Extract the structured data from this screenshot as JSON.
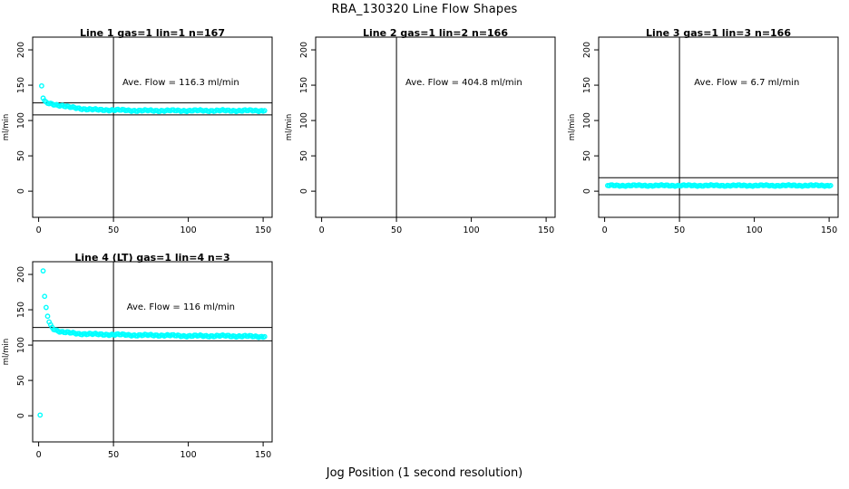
{
  "figure": {
    "title": "RBA_130320  Line Flow Shapes",
    "caption": "Jog Position (1 second resolution)",
    "background_color": "#ffffff",
    "point_color": "#00ffff",
    "axis_color": "#000000"
  },
  "chart_data": {
    "type": "scatter",
    "title": "RBA_130320  Line Flow Shapes",
    "xlabel": "Jog Position (1 second resolution)",
    "ylabel": "ml/min",
    "x_ticks": [
      0,
      50,
      100,
      150
    ],
    "y_ticks": [
      0,
      50,
      100,
      150,
      200
    ],
    "xlim": [
      -4,
      156
    ],
    "ylim": [
      -37,
      218
    ],
    "grid": false,
    "vline_x": 50,
    "point_color": "#00ffff",
    "annotation_anchor": {
      "x": 95,
      "y": 150
    },
    "panels": [
      {
        "title": "Line 1 gas=1 lin=1 n=167",
        "annotation": "Ave. Flow =  116.3  ml/min",
        "ave_flow": 116.3,
        "n": 167,
        "ref_lines": [
          125,
          108
        ],
        "profile": [
          [
            2,
            149
          ],
          [
            3,
            132
          ],
          [
            4,
            127
          ],
          [
            5,
            125
          ],
          [
            7,
            124
          ],
          [
            10,
            123
          ],
          [
            13,
            122
          ],
          [
            16,
            121
          ],
          [
            20,
            119
          ],
          [
            24,
            118
          ],
          [
            28,
            117
          ],
          [
            33,
            116
          ],
          [
            40,
            115
          ],
          [
            50,
            115
          ],
          [
            65,
            114
          ],
          [
            80,
            114
          ],
          [
            100,
            114
          ],
          [
            125,
            114
          ],
          [
            151,
            114
          ]
        ],
        "extra_points": [],
        "band_jitter": 1.4
      },
      {
        "title": "Line 2 gas=1 lin=2 n=166",
        "annotation": "Ave. Flow =  404.8  ml/min",
        "ave_flow": 404.8,
        "n": 166,
        "ref_lines": [],
        "profile": [],
        "extra_points": [],
        "band_jitter": 0
      },
      {
        "title": "Line 3 gas=1 lin=3 n=166",
        "annotation": "Ave. Flow =  6.7  ml/min",
        "ave_flow": 6.7,
        "n": 166,
        "ref_lines": [
          19,
          -5
        ],
        "profile": [
          [
            2,
            8
          ],
          [
            30,
            8
          ],
          [
            70,
            8
          ],
          [
            110,
            8
          ],
          [
            151,
            8
          ]
        ],
        "extra_points": [],
        "band_jitter": 1.1
      },
      {
        "title": "Line 4 (LT) gas=1 lin=4 n=3",
        "annotation": "Ave. Flow =  116  ml/min",
        "ave_flow": 116,
        "n": 3,
        "ref_lines": [
          125,
          106
        ],
        "profile": [
          [
            3,
            205
          ],
          [
            4,
            168
          ],
          [
            5,
            152
          ],
          [
            6,
            141
          ],
          [
            7,
            133
          ],
          [
            8,
            128
          ],
          [
            9,
            125
          ],
          [
            10,
            123
          ],
          [
            12,
            121
          ],
          [
            15,
            119
          ],
          [
            18,
            118
          ],
          [
            22,
            117
          ],
          [
            27,
            116
          ],
          [
            33,
            116
          ],
          [
            40,
            115
          ],
          [
            50,
            115
          ],
          [
            65,
            114
          ],
          [
            80,
            114
          ],
          [
            100,
            113
          ],
          [
            125,
            113
          ],
          [
            151,
            112
          ]
        ],
        "extra_points": [
          [
            1,
            1
          ]
        ],
        "band_jitter": 1.4
      }
    ]
  }
}
